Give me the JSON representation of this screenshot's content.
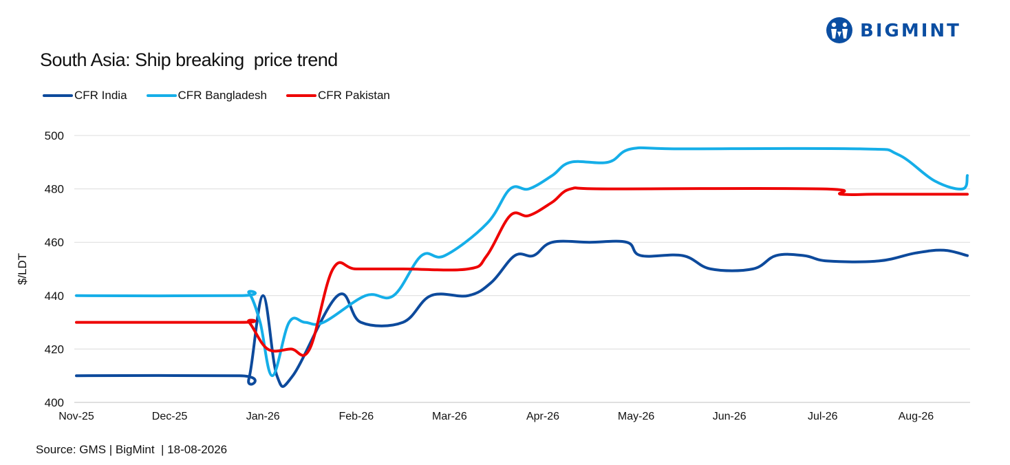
{
  "brand": {
    "name": "BIGMINT",
    "color": "#0b4ea2"
  },
  "chart_data": {
    "type": "line",
    "title": "South Asia: Ship breaking  price trend",
    "xlabel": "",
    "ylabel": "$/LDT",
    "ylim": [
      400,
      500
    ],
    "yticks": [
      400,
      420,
      440,
      460,
      480,
      500
    ],
    "grid": true,
    "legend_position": "top-left",
    "categories": [
      "Nov-25",
      "Dec-25",
      "Jan-26",
      "Feb-26",
      "Mar-26",
      "Apr-26",
      "May-26",
      "Jun-26",
      "Jul-26",
      "Aug-26"
    ],
    "x_range": [
      0,
      9.55
    ],
    "series": [
      {
        "name": "CFR India",
        "color": "#0d4a9c",
        "points": [
          [
            0,
            410
          ],
          [
            1.75,
            410
          ],
          [
            1.85,
            409
          ],
          [
            2.0,
            440
          ],
          [
            2.15,
            410
          ],
          [
            2.32,
            410
          ],
          [
            2.8,
            440
          ],
          [
            3.05,
            430
          ],
          [
            3.5,
            430
          ],
          [
            3.8,
            440
          ],
          [
            4.2,
            440
          ],
          [
            4.45,
            445
          ],
          [
            4.7,
            455
          ],
          [
            4.9,
            455
          ],
          [
            5.1,
            460
          ],
          [
            5.5,
            460
          ],
          [
            5.9,
            460
          ],
          [
            6.05,
            455
          ],
          [
            6.5,
            455
          ],
          [
            6.8,
            450
          ],
          [
            7.25,
            450
          ],
          [
            7.5,
            455
          ],
          [
            7.8,
            455
          ],
          [
            8.05,
            453
          ],
          [
            8.6,
            453
          ],
          [
            9.0,
            456
          ],
          [
            9.3,
            457
          ],
          [
            9.55,
            455
          ]
        ]
      },
      {
        "name": "CFR Bangladesh",
        "color": "#15aee8",
        "points": [
          [
            0,
            440
          ],
          [
            1.75,
            440
          ],
          [
            1.85,
            441
          ],
          [
            1.97,
            430
          ],
          [
            2.1,
            410
          ],
          [
            2.28,
            430
          ],
          [
            2.45,
            430
          ],
          [
            2.65,
            430
          ],
          [
            3.1,
            440
          ],
          [
            3.4,
            440
          ],
          [
            3.7,
            455
          ],
          [
            3.95,
            455
          ],
          [
            4.4,
            467
          ],
          [
            4.65,
            480
          ],
          [
            4.85,
            480
          ],
          [
            5.1,
            485
          ],
          [
            5.3,
            490
          ],
          [
            5.7,
            490
          ],
          [
            5.95,
            495
          ],
          [
            6.5,
            495
          ],
          [
            8.4,
            495
          ],
          [
            8.8,
            493
          ],
          [
            9.2,
            483
          ],
          [
            9.5,
            480
          ],
          [
            9.55,
            485
          ]
        ]
      },
      {
        "name": "CFR Pakistan",
        "color": "#ee0000",
        "points": [
          [
            0,
            430
          ],
          [
            1.75,
            430
          ],
          [
            1.85,
            430
          ],
          [
            2.05,
            420
          ],
          [
            2.3,
            420
          ],
          [
            2.5,
            420
          ],
          [
            2.75,
            450
          ],
          [
            3.0,
            450
          ],
          [
            3.5,
            450
          ],
          [
            4.2,
            450
          ],
          [
            4.4,
            455
          ],
          [
            4.65,
            470
          ],
          [
            4.85,
            470
          ],
          [
            5.1,
            475
          ],
          [
            5.3,
            480
          ],
          [
            5.7,
            480
          ],
          [
            8.0,
            480
          ],
          [
            8.2,
            478
          ],
          [
            8.6,
            478
          ],
          [
            9.55,
            478
          ]
        ]
      }
    ]
  },
  "footer": {
    "source": "Source: GMS | BigMint  | 18-08-2026"
  }
}
